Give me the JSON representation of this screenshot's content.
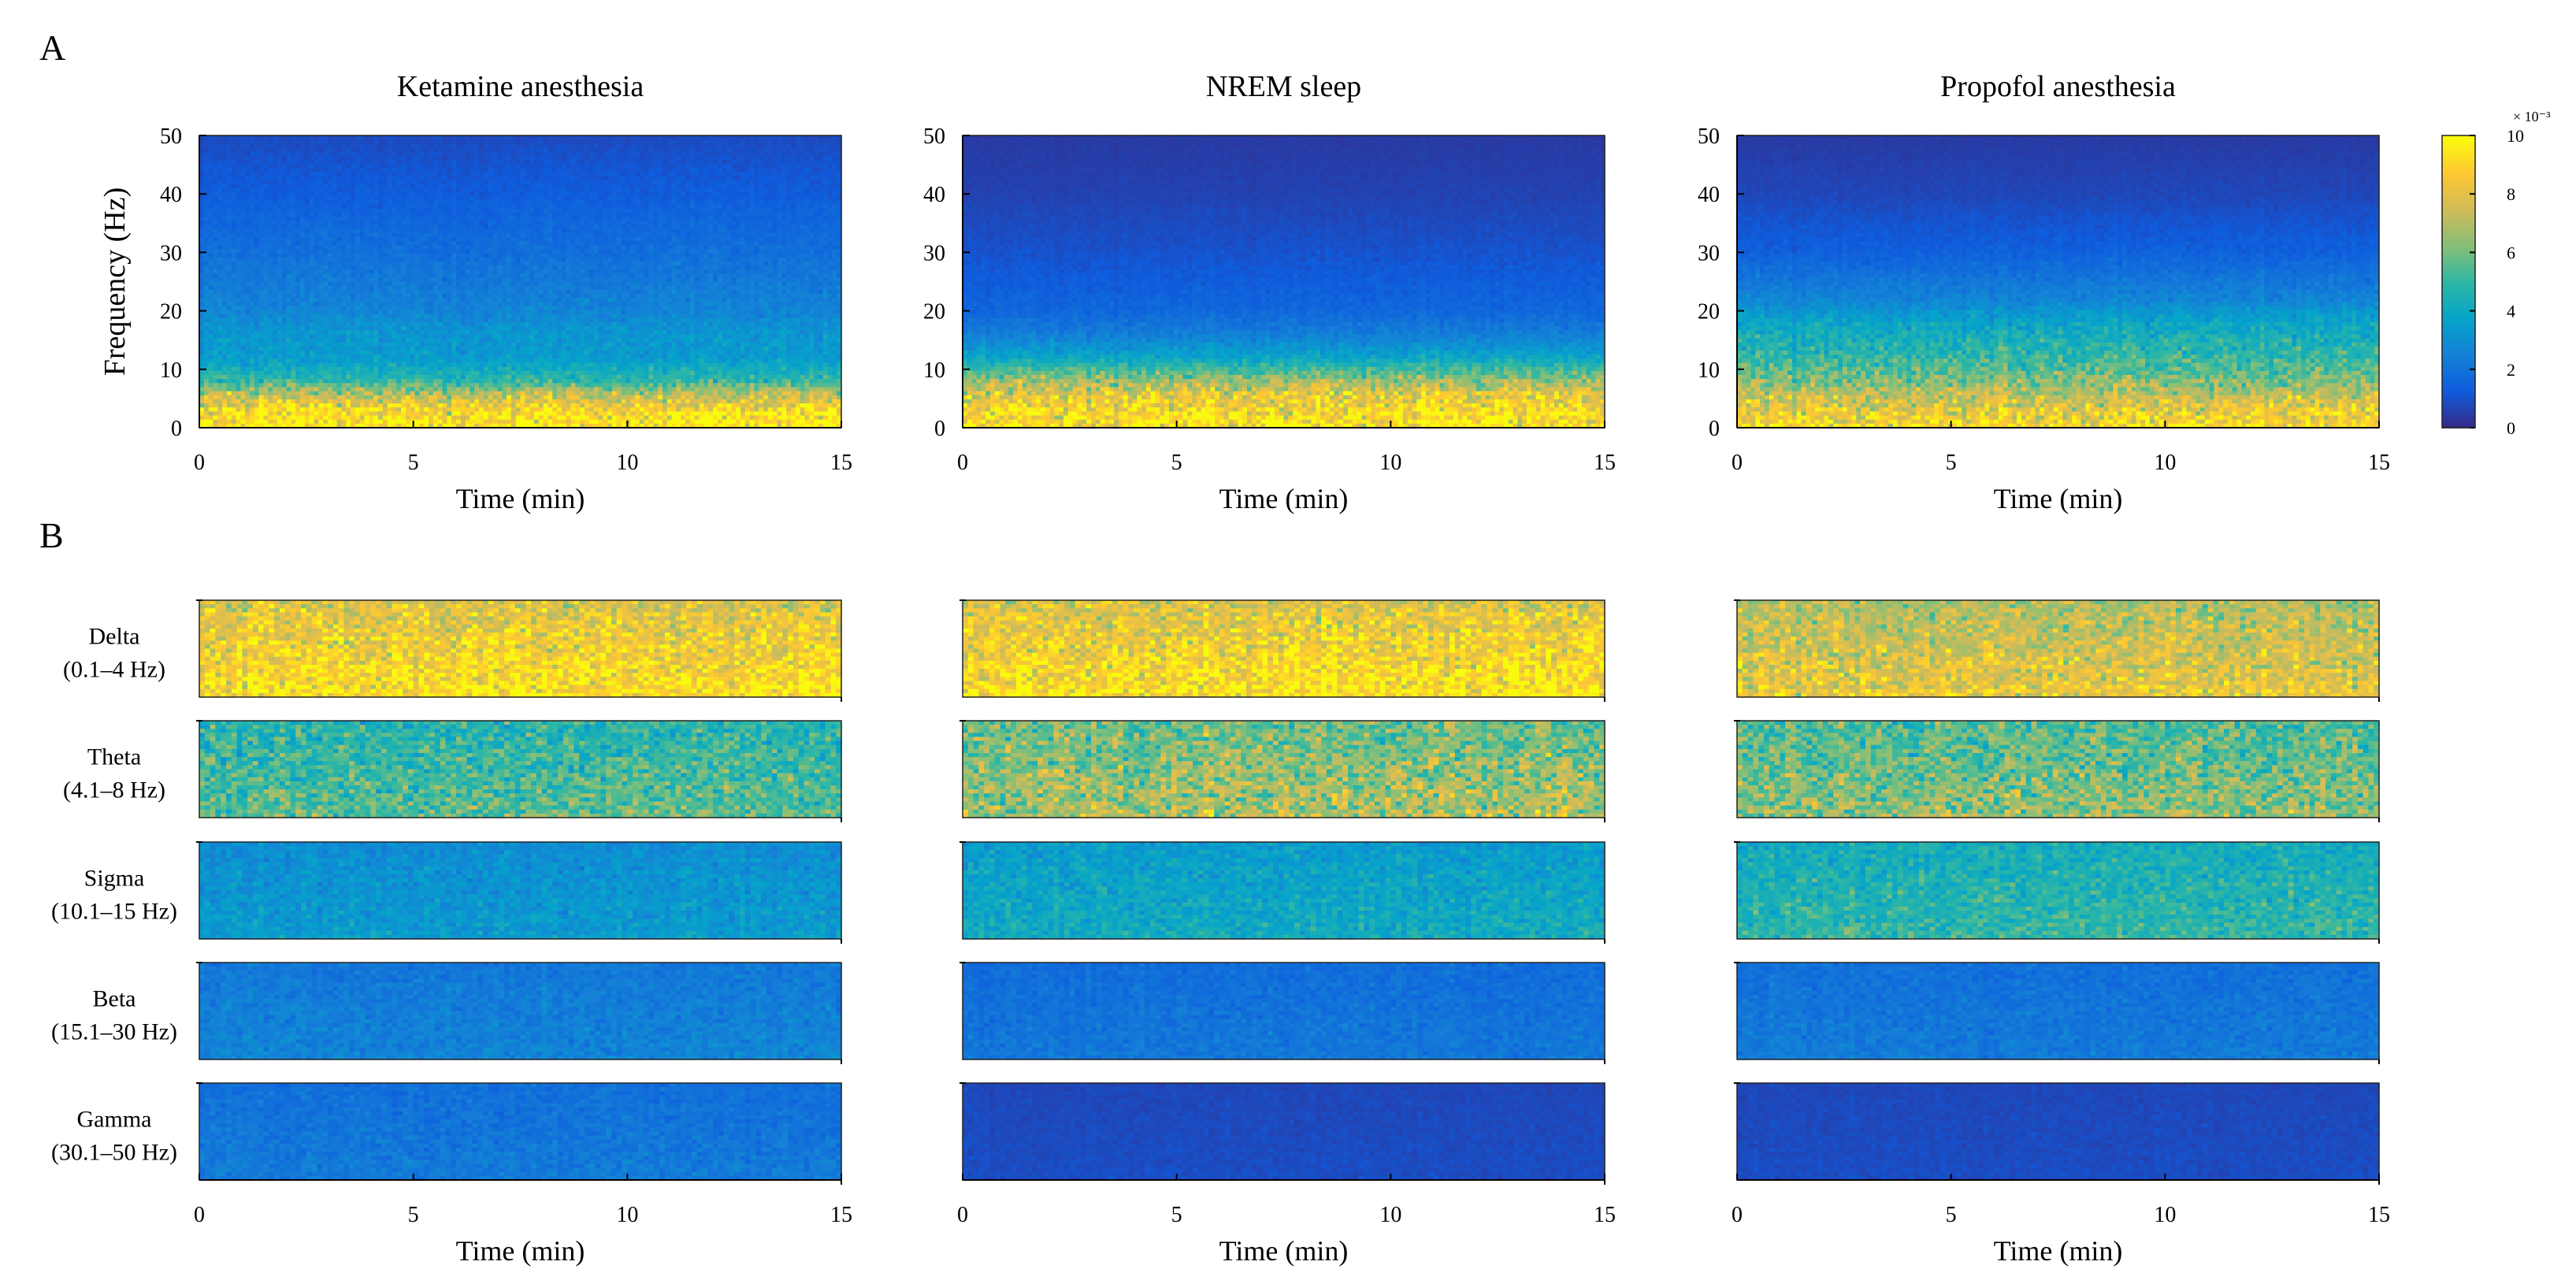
{
  "panel_labels": [
    "A",
    "B"
  ],
  "colorbar": {
    "exponent_label": "× 10⁻³",
    "ticks": [
      0,
      2,
      4,
      6,
      8,
      10
    ],
    "range": [
      0,
      10
    ],
    "colormap": "parula",
    "colors": [
      "#352A87",
      "#0F5CDD",
      "#1481D6",
      "#06A4CA",
      "#2EB7A4",
      "#87BF77",
      "#D1BB59",
      "#FEC832",
      "#F9FB0E"
    ]
  },
  "chart_data": [
    {
      "type": "heatmap",
      "panel": "A",
      "title": "Ketamine anesthesia",
      "xlabel": "Time (min)",
      "ylabel": "Frequency (Hz)",
      "xlim": [
        0,
        15
      ],
      "ylim": [
        0,
        50
      ],
      "xticks": [
        0,
        5,
        10,
        15
      ],
      "yticks": [
        0,
        10,
        20,
        30,
        40,
        50
      ],
      "clim": [
        0,
        10
      ],
      "low_band_extent_hz": 8,
      "profile": [
        {
          "freq_hz": 0,
          "power": 9.6
        },
        {
          "freq_hz": 3,
          "power": 9.0
        },
        {
          "freq_hz": 6,
          "power": 7.0
        },
        {
          "freq_hz": 8,
          "power": 5.0
        },
        {
          "freq_hz": 12,
          "power": 3.4
        },
        {
          "freq_hz": 16,
          "power": 3.3
        },
        {
          "freq_hz": 20,
          "power": 2.6
        },
        {
          "freq_hz": 30,
          "power": 1.9
        },
        {
          "freq_hz": 40,
          "power": 1.3
        },
        {
          "freq_hz": 50,
          "power": 0.8
        }
      ]
    },
    {
      "type": "heatmap",
      "panel": "A",
      "title": "NREM sleep",
      "xlabel": "Time (min)",
      "ylabel": "",
      "xlim": [
        0,
        15
      ],
      "ylim": [
        0,
        50
      ],
      "xticks": [
        0,
        5,
        10,
        15
      ],
      "yticks": [
        0,
        10,
        20,
        30,
        40,
        50
      ],
      "clim": [
        0,
        10
      ],
      "low_band_extent_hz": 9,
      "profile": [
        {
          "freq_hz": 0,
          "power": 9.4
        },
        {
          "freq_hz": 3,
          "power": 9.0
        },
        {
          "freq_hz": 6,
          "power": 8.0
        },
        {
          "freq_hz": 9,
          "power": 6.0
        },
        {
          "freq_hz": 12,
          "power": 3.8
        },
        {
          "freq_hz": 16,
          "power": 2.4
        },
        {
          "freq_hz": 20,
          "power": 1.6
        },
        {
          "freq_hz": 30,
          "power": 1.0
        },
        {
          "freq_hz": 40,
          "power": 0.6
        },
        {
          "freq_hz": 50,
          "power": 0.4
        }
      ]
    },
    {
      "type": "heatmap",
      "panel": "A",
      "title": "Propofol anesthesia",
      "xlabel": "Time (min)",
      "ylabel": "",
      "xlim": [
        0,
        15
      ],
      "ylim": [
        0,
        50
      ],
      "xticks": [
        0,
        5,
        10,
        15
      ],
      "yticks": [
        0,
        10,
        20,
        30,
        40,
        50
      ],
      "clim": [
        0,
        10
      ],
      "low_band_extent_hz": 18,
      "profile": [
        {
          "freq_hz": 0,
          "power": 9.0
        },
        {
          "freq_hz": 3,
          "power": 8.2
        },
        {
          "freq_hz": 6,
          "power": 7.0
        },
        {
          "freq_hz": 10,
          "power": 5.5
        },
        {
          "freq_hz": 14,
          "power": 4.6
        },
        {
          "freq_hz": 18,
          "power": 3.8
        },
        {
          "freq_hz": 22,
          "power": 2.6
        },
        {
          "freq_hz": 30,
          "power": 1.4
        },
        {
          "freq_hz": 40,
          "power": 0.7
        },
        {
          "freq_hz": 50,
          "power": 0.4
        }
      ]
    }
  ],
  "bands": {
    "panel": "B",
    "xlabel": "Time (min)",
    "xlim": [
      0,
      15
    ],
    "xticks": [
      0,
      5,
      10,
      15
    ],
    "rows": [
      {
        "label": "Delta",
        "range": "(0.1–4 Hz)"
      },
      {
        "label": "Theta",
        "range": "(4.1–8 Hz)"
      },
      {
        "label": "Sigma",
        "range": "(10.1–15 Hz)"
      },
      {
        "label": "Beta",
        "range": "(15.1–30 Hz)"
      },
      {
        "label": "Gamma",
        "range": "(30.1–50 Hz)"
      }
    ],
    "conditions": [
      "Ketamine anesthesia",
      "NREM sleep",
      "Propofol anesthesia"
    ],
    "mean_power": [
      [
        8.6,
        5.2,
        3.2,
        2.4,
        2.1
      ],
      [
        8.6,
        6.4,
        3.8,
        2.0,
        0.8
      ],
      [
        7.6,
        5.9,
        4.6,
        2.1,
        0.8
      ]
    ]
  }
}
